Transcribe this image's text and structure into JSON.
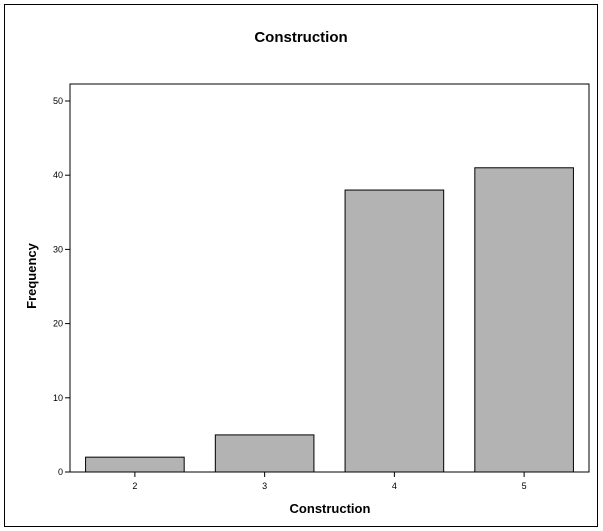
{
  "chart_data": {
    "type": "bar",
    "title": "Construction",
    "xlabel": "Construction",
    "ylabel": "Frequency",
    "categories": [
      "2",
      "3",
      "4",
      "5"
    ],
    "values": [
      2,
      5,
      38,
      41
    ],
    "ylim": [
      0,
      50
    ],
    "yticks": [
      "0",
      "10",
      "20",
      "30",
      "40",
      "50"
    ],
    "bar_color": "#b3b3b3",
    "grid": false,
    "legend": "none"
  }
}
